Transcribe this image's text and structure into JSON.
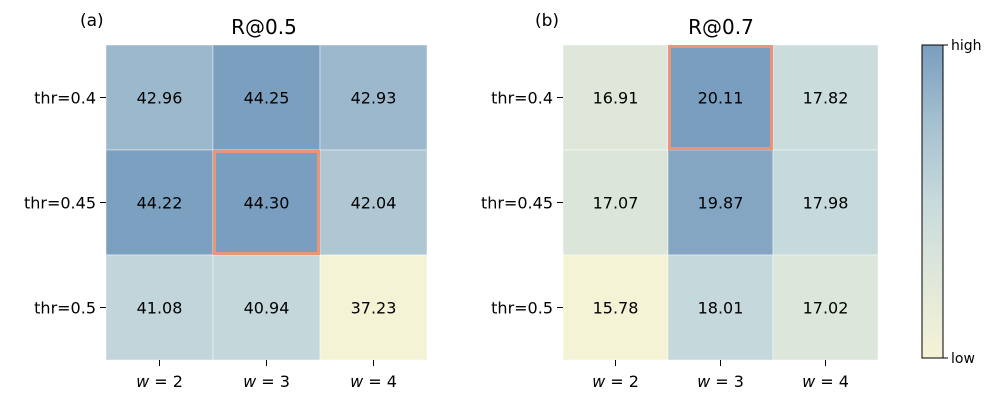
{
  "chart_data": [
    {
      "type": "heatmap",
      "panel_label": "(a)",
      "title": "R@0.5",
      "rows": [
        "thr=0.4",
        "thr=0.45",
        "thr=0.5"
      ],
      "columns": [
        {
          "var": "w",
          "eq": " = ",
          "val": "2"
        },
        {
          "var": "w",
          "eq": " = ",
          "val": "3"
        },
        {
          "var": "w",
          "eq": " = ",
          "val": "4"
        }
      ],
      "values": [
        [
          42.96,
          44.25,
          42.93
        ],
        [
          44.22,
          44.3,
          42.04
        ],
        [
          41.08,
          40.94,
          37.23
        ]
      ],
      "highlight": {
        "row": 1,
        "col": 1,
        "color": "#e9957a"
      }
    },
    {
      "type": "heatmap",
      "panel_label": "(b)",
      "title": "R@0.7",
      "rows": [
        "thr=0.4",
        "thr=0.45",
        "thr=0.5"
      ],
      "columns": [
        {
          "var": "w",
          "eq": " = ",
          "val": "2"
        },
        {
          "var": "w",
          "eq": " = ",
          "val": "3"
        },
        {
          "var": "w",
          "eq": " = ",
          "val": "4"
        }
      ],
      "values": [
        [
          16.91,
          20.11,
          17.82
        ],
        [
          17.07,
          19.87,
          17.98
        ],
        [
          15.78,
          18.01,
          17.02
        ]
      ],
      "highlight": {
        "row": 0,
        "col": 1,
        "color": "#e9957a"
      }
    }
  ],
  "colorbar": {
    "high_label": "high",
    "low_label": "low",
    "colors": [
      "#f5f3d6",
      "#e0e8da",
      "#c7dadc",
      "#a5c0d0",
      "#7a9ebf"
    ]
  }
}
